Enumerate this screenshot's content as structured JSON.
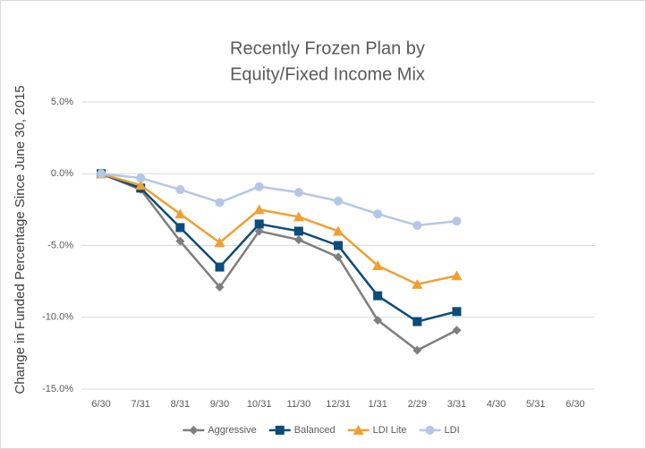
{
  "chart_data": {
    "type": "line",
    "title": [
      "Recently Frozen Plan by",
      "Equity/Fixed Income Mix"
    ],
    "y_label": "Change in Funded Percentage Since June 30, 2015",
    "categories": [
      "6/30",
      "7/31",
      "8/31",
      "9/30",
      "10/31",
      "11/30",
      "12/31",
      "1/31",
      "2/29",
      "3/31",
      "4/30",
      "5/31",
      "6/30"
    ],
    "series": [
      {
        "name": "Aggressive",
        "color": "#7f7f7f",
        "marker": "diamond",
        "values": [
          0,
          -1.1,
          -4.7,
          -7.9,
          -4.0,
          -4.6,
          -5.8,
          -10.2,
          -12.3,
          -10.9,
          null,
          null,
          null
        ]
      },
      {
        "name": "Balanced",
        "color": "#0b4c7a",
        "marker": "square",
        "values": [
          0,
          -1.0,
          -3.75,
          -6.5,
          -3.5,
          -4.0,
          -5.0,
          -8.5,
          -10.3,
          -9.6,
          null,
          null,
          null
        ]
      },
      {
        "name": "LDI Lite",
        "color": "#f0a030",
        "marker": "triangle",
        "values": [
          0,
          -0.8,
          -2.8,
          -4.8,
          -2.5,
          -3.0,
          -4.0,
          -6.4,
          -7.7,
          -7.1,
          null,
          null,
          null
        ]
      },
      {
        "name": "LDI",
        "color": "#b4c7e7",
        "marker": "circle",
        "values": [
          0,
          -0.3,
          -1.1,
          -2.0,
          -0.9,
          -1.3,
          -1.9,
          -2.8,
          -3.6,
          -3.3,
          null,
          null,
          null
        ]
      }
    ],
    "ylim": [
      -15,
      5
    ],
    "yticks": [
      {
        "value": 5,
        "label": "5.0%"
      },
      {
        "value": 0,
        "label": "0.0%"
      },
      {
        "value": -5,
        "label": "-5.0%"
      },
      {
        "value": -10,
        "label": "-10.0%"
      },
      {
        "value": -15,
        "label": "-15.0%"
      }
    ],
    "grid": true,
    "legend": "bottom"
  }
}
